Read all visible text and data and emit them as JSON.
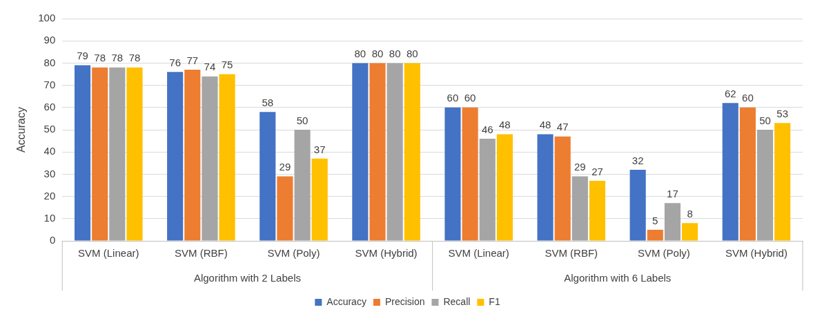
{
  "chart_data": {
    "type": "bar",
    "ylabel": "Accuracy",
    "categories": [
      "SVM (Linear)",
      "SVM (RBF)",
      "SVM (Poly)",
      "SVM (Hybrid)",
      "SVM (Linear)",
      "SVM (RBF)",
      "SVM (Poly)",
      "SVM (Hybrid)"
    ],
    "series": [
      {
        "name": "Accuracy",
        "color": "#4472c4",
        "values": [
          79,
          76,
          58,
          80,
          60,
          48,
          32,
          62
        ]
      },
      {
        "name": "Precision",
        "color": "#ed7d31",
        "values": [
          78,
          77,
          29,
          80,
          60,
          47,
          5,
          60
        ]
      },
      {
        "name": "Recall",
        "color": "#a5a5a5",
        "values": [
          78,
          74,
          50,
          80,
          46,
          29,
          17,
          50
        ]
      },
      {
        "name": "F1",
        "color": "#ffc000",
        "values": [
          78,
          75,
          37,
          80,
          48,
          27,
          8,
          53
        ]
      }
    ],
    "annotations": [
      "Algorithm with 2 Labels",
      "Algorithm with 6 Labels"
    ],
    "ylim": [
      0,
      100
    ],
    "yticks": [
      0,
      10,
      20,
      30,
      40,
      50,
      60,
      70,
      80,
      90,
      100
    ],
    "grid": "y",
    "legend": "bottom",
    "data_labels": true
  }
}
